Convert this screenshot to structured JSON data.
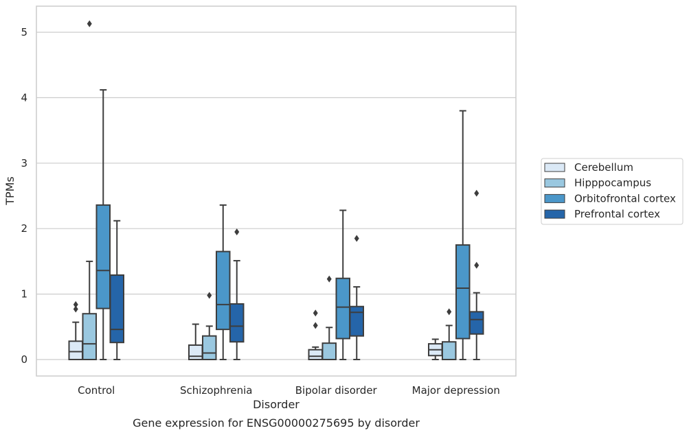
{
  "chart_data": {
    "type": "box",
    "title": "",
    "caption": "Gene expression for ENSG00000275695 by disorder",
    "xlabel": "Disorder",
    "ylabel": "TPMs",
    "ylim": [
      -0.25,
      5.4
    ],
    "yticks": [
      0,
      1,
      2,
      3,
      4,
      5
    ],
    "ytick_labels": [
      "0",
      "1",
      "2",
      "3",
      "4",
      "5"
    ],
    "grid": "horizontal",
    "legend_position": "right",
    "categories": [
      "Control",
      "Schizophrenia",
      "Bipolar disorder",
      "Major depression"
    ],
    "series": [
      {
        "name": "Cerebellum",
        "color": "#dbe9f6",
        "boxes": [
          {
            "whislo": 0,
            "q1": 0,
            "med": 0.12,
            "q3": 0.28,
            "whishi": 0.57,
            "fliers": [
              0.77,
              0.84
            ]
          },
          {
            "whislo": 0,
            "q1": 0,
            "med": 0.05,
            "q3": 0.22,
            "whishi": 0.54,
            "fliers": []
          },
          {
            "whislo": 0,
            "q1": 0,
            "med": 0.05,
            "q3": 0.15,
            "whishi": 0.19,
            "fliers": [
              0.52,
              0.71
            ]
          },
          {
            "whislo": 0,
            "q1": 0.06,
            "med": 0.15,
            "q3": 0.24,
            "whishi": 0.31,
            "fliers": []
          }
        ]
      },
      {
        "name": "Hipppocampus",
        "color": "#9ac8e0",
        "boxes": [
          {
            "whislo": 0,
            "q1": 0,
            "med": 0.24,
            "q3": 0.7,
            "whishi": 1.5,
            "fliers": [
              5.13
            ]
          },
          {
            "whislo": 0,
            "q1": 0,
            "med": 0.1,
            "q3": 0.36,
            "whishi": 0.51,
            "fliers": [
              0.98
            ]
          },
          {
            "whislo": 0,
            "q1": 0,
            "med": 0.0,
            "q3": 0.25,
            "whishi": 0.49,
            "fliers": [
              1.23
            ]
          },
          {
            "whislo": 0,
            "q1": 0,
            "med": 0.0,
            "q3": 0.27,
            "whishi": 0.52,
            "fliers": [
              0.73
            ]
          }
        ]
      },
      {
        "name": "Orbitofrontal cortex",
        "color": "#4b97c9",
        "boxes": [
          {
            "whislo": 0,
            "q1": 0.78,
            "med": 1.36,
            "q3": 2.36,
            "whishi": 4.12,
            "fliers": []
          },
          {
            "whislo": 0,
            "q1": 0.46,
            "med": 0.84,
            "q3": 1.65,
            "whishi": 2.36,
            "fliers": []
          },
          {
            "whislo": 0,
            "q1": 0.32,
            "med": 0.8,
            "q3": 1.24,
            "whishi": 2.28,
            "fliers": []
          },
          {
            "whislo": 0,
            "q1": 0.32,
            "med": 1.09,
            "q3": 1.75,
            "whishi": 3.8,
            "fliers": []
          }
        ]
      },
      {
        "name": "Prefrontal cortex",
        "color": "#2565a9",
        "boxes": [
          {
            "whislo": 0,
            "q1": 0.26,
            "med": 0.46,
            "q3": 1.29,
            "whishi": 2.12,
            "fliers": []
          },
          {
            "whislo": 0,
            "q1": 0.27,
            "med": 0.51,
            "q3": 0.85,
            "whishi": 1.51,
            "fliers": [
              1.95
            ]
          },
          {
            "whislo": 0,
            "q1": 0.36,
            "med": 0.72,
            "q3": 0.81,
            "whishi": 1.11,
            "fliers": [
              1.85
            ]
          },
          {
            "whislo": 0,
            "q1": 0.39,
            "med": 0.61,
            "q3": 0.73,
            "whishi": 1.02,
            "fliers": [
              1.44,
              2.54
            ]
          }
        ]
      }
    ]
  }
}
